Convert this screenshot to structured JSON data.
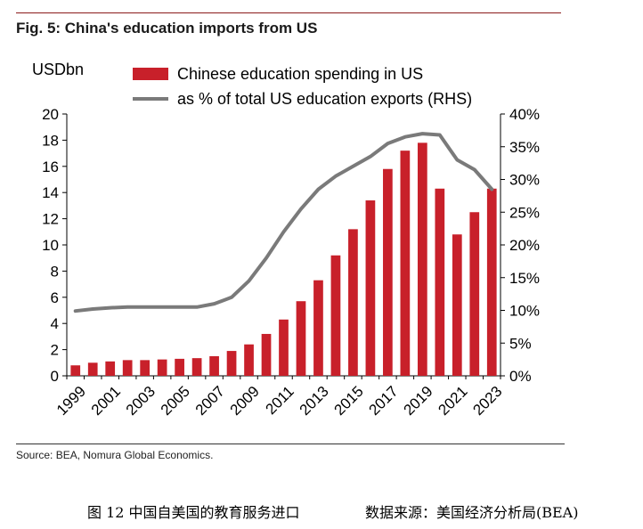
{
  "figure": {
    "title": "Fig. 5: China's education imports from US",
    "source": "Source: BEA, Nomura Global Economics.",
    "caption_left": "图 12 中国自美国的教育服务进口",
    "caption_right": "数据来源：美国经济分析局(BEA)"
  },
  "chart_data": {
    "type": "bar",
    "title": "Fig. 5: China's education imports from US",
    "ylabel": "USDbn",
    "ylabel_right": "",
    "ylim": [
      0,
      20
    ],
    "ylim_right": [
      0,
      40
    ],
    "yticks_left": [
      "0",
      "2",
      "4",
      "6",
      "8",
      "10",
      "12",
      "14",
      "16",
      "18",
      "20"
    ],
    "yticks_right": [
      "0%",
      "5%",
      "10%",
      "15%",
      "20%",
      "25%",
      "30%",
      "35%",
      "40%"
    ],
    "xtick_labels": [
      "1999",
      "2001",
      "2003",
      "2005",
      "2007",
      "2009",
      "2011",
      "2013",
      "2015",
      "2017",
      "2019",
      "2021",
      "2023"
    ],
    "legend_placement": "top",
    "grid": false,
    "series": [
      {
        "name": "Chinese education spending in US",
        "type": "bar",
        "axis": "left",
        "color": "#c8202a",
        "x": [
          1999,
          2000,
          2001,
          2002,
          2003,
          2004,
          2005,
          2006,
          2007,
          2008,
          2009,
          2010,
          2011,
          2012,
          2013,
          2014,
          2015,
          2016,
          2017,
          2018,
          2019,
          2020,
          2021,
          2022,
          2023
        ],
        "values": [
          0.8,
          1.0,
          1.1,
          1.2,
          1.2,
          1.25,
          1.3,
          1.35,
          1.5,
          1.9,
          2.4,
          3.2,
          4.3,
          5.7,
          7.3,
          9.2,
          11.2,
          13.4,
          15.8,
          17.2,
          17.8,
          14.3,
          10.8,
          12.5,
          14.3
        ]
      },
      {
        "name": "as % of total US education exports (RHS)",
        "type": "line",
        "axis": "right",
        "color": "#7a7a7a",
        "x": [
          1999,
          2000,
          2001,
          2002,
          2003,
          2004,
          2005,
          2006,
          2007,
          2008,
          2009,
          2010,
          2011,
          2012,
          2013,
          2014,
          2015,
          2016,
          2017,
          2018,
          2019,
          2020,
          2021,
          2022,
          2023
        ],
        "values": [
          9.9,
          10.2,
          10.4,
          10.5,
          10.5,
          10.5,
          10.5,
          10.5,
          11.0,
          12.0,
          14.5,
          18.0,
          22.0,
          25.5,
          28.5,
          30.5,
          32.0,
          33.5,
          35.5,
          36.5,
          37.0,
          36.8,
          33.0,
          31.5,
          28.5
        ]
      }
    ]
  }
}
